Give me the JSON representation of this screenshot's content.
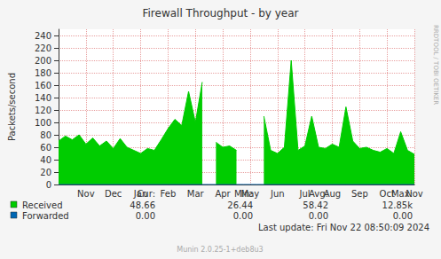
{
  "chart_data": {
    "type": "area",
    "title": "Firewall Throughput - by year",
    "y_label": "Packets/second",
    "side_text": "RRDTOOL / TOBI OETIKER",
    "last_update": "Last update: Fri Nov 22 08:50:09 2024",
    "footer": "Munin 2.0.25-1+deb8u3",
    "categories": [
      null,
      null,
      null,
      null,
      "Nov",
      null,
      null,
      null,
      "Dec",
      null,
      null,
      null,
      "Jan",
      null,
      null,
      null,
      "Feb",
      null,
      null,
      null,
      "Mar",
      null,
      null,
      null,
      "Apr",
      null,
      null,
      null,
      "May",
      null,
      null,
      null,
      "Jun",
      null,
      null,
      null,
      "Jul",
      null,
      null,
      null,
      "Aug",
      null,
      null,
      null,
      "Sep",
      null,
      null,
      null,
      "Oct",
      null,
      null,
      null,
      "Nov"
    ],
    "summary_columns": [
      "Cur:",
      "Min:",
      "Avg:",
      "Max:"
    ],
    "series": [
      {
        "name": "Received",
        "color": "#00cc00",
        "type": "area",
        "values": [
          70,
          78,
          72,
          80,
          65,
          75,
          62,
          70,
          58,
          74,
          60,
          55,
          50,
          58,
          55,
          72,
          90,
          105,
          95,
          150,
          100,
          165,
          null,
          68,
          60,
          62,
          55,
          null,
          null,
          null,
          110,
          55,
          50,
          60,
          200,
          55,
          62,
          110,
          60,
          58,
          65,
          60,
          125,
          70,
          58,
          60,
          55,
          52,
          58,
          50,
          85,
          55,
          48.66
        ],
        "summary": [
          48.66,
          26.44,
          58.42,
          {
            "value": 12850,
            "label": "12.85k"
          }
        ]
      },
      {
        "name": "Forwarded",
        "color": "#0066b3",
        "type": "line",
        "values": [
          0,
          0,
          0,
          0,
          0,
          0,
          0,
          0,
          0,
          0,
          0,
          0,
          0,
          0,
          0,
          0,
          0,
          0,
          0,
          0,
          0,
          0,
          0,
          0,
          0,
          0,
          0,
          0,
          0,
          0,
          0,
          0,
          0,
          0,
          0,
          0,
          0,
          0,
          0,
          0,
          0,
          0,
          0,
          0,
          0,
          0,
          0,
          0,
          0,
          0,
          0,
          0,
          0
        ],
        "summary": [
          {
            "value": 0,
            "label": "0.00"
          },
          {
            "value": 0,
            "label": "0.00"
          },
          {
            "value": 0,
            "label": "0.00"
          },
          {
            "value": 0,
            "label": "0.00"
          }
        ]
      }
    ],
    "ylim": [
      0,
      250
    ],
    "yticks": [
      0,
      20,
      40,
      60,
      80,
      100,
      120,
      140,
      160,
      180,
      200,
      220,
      240
    ],
    "grid": true
  }
}
